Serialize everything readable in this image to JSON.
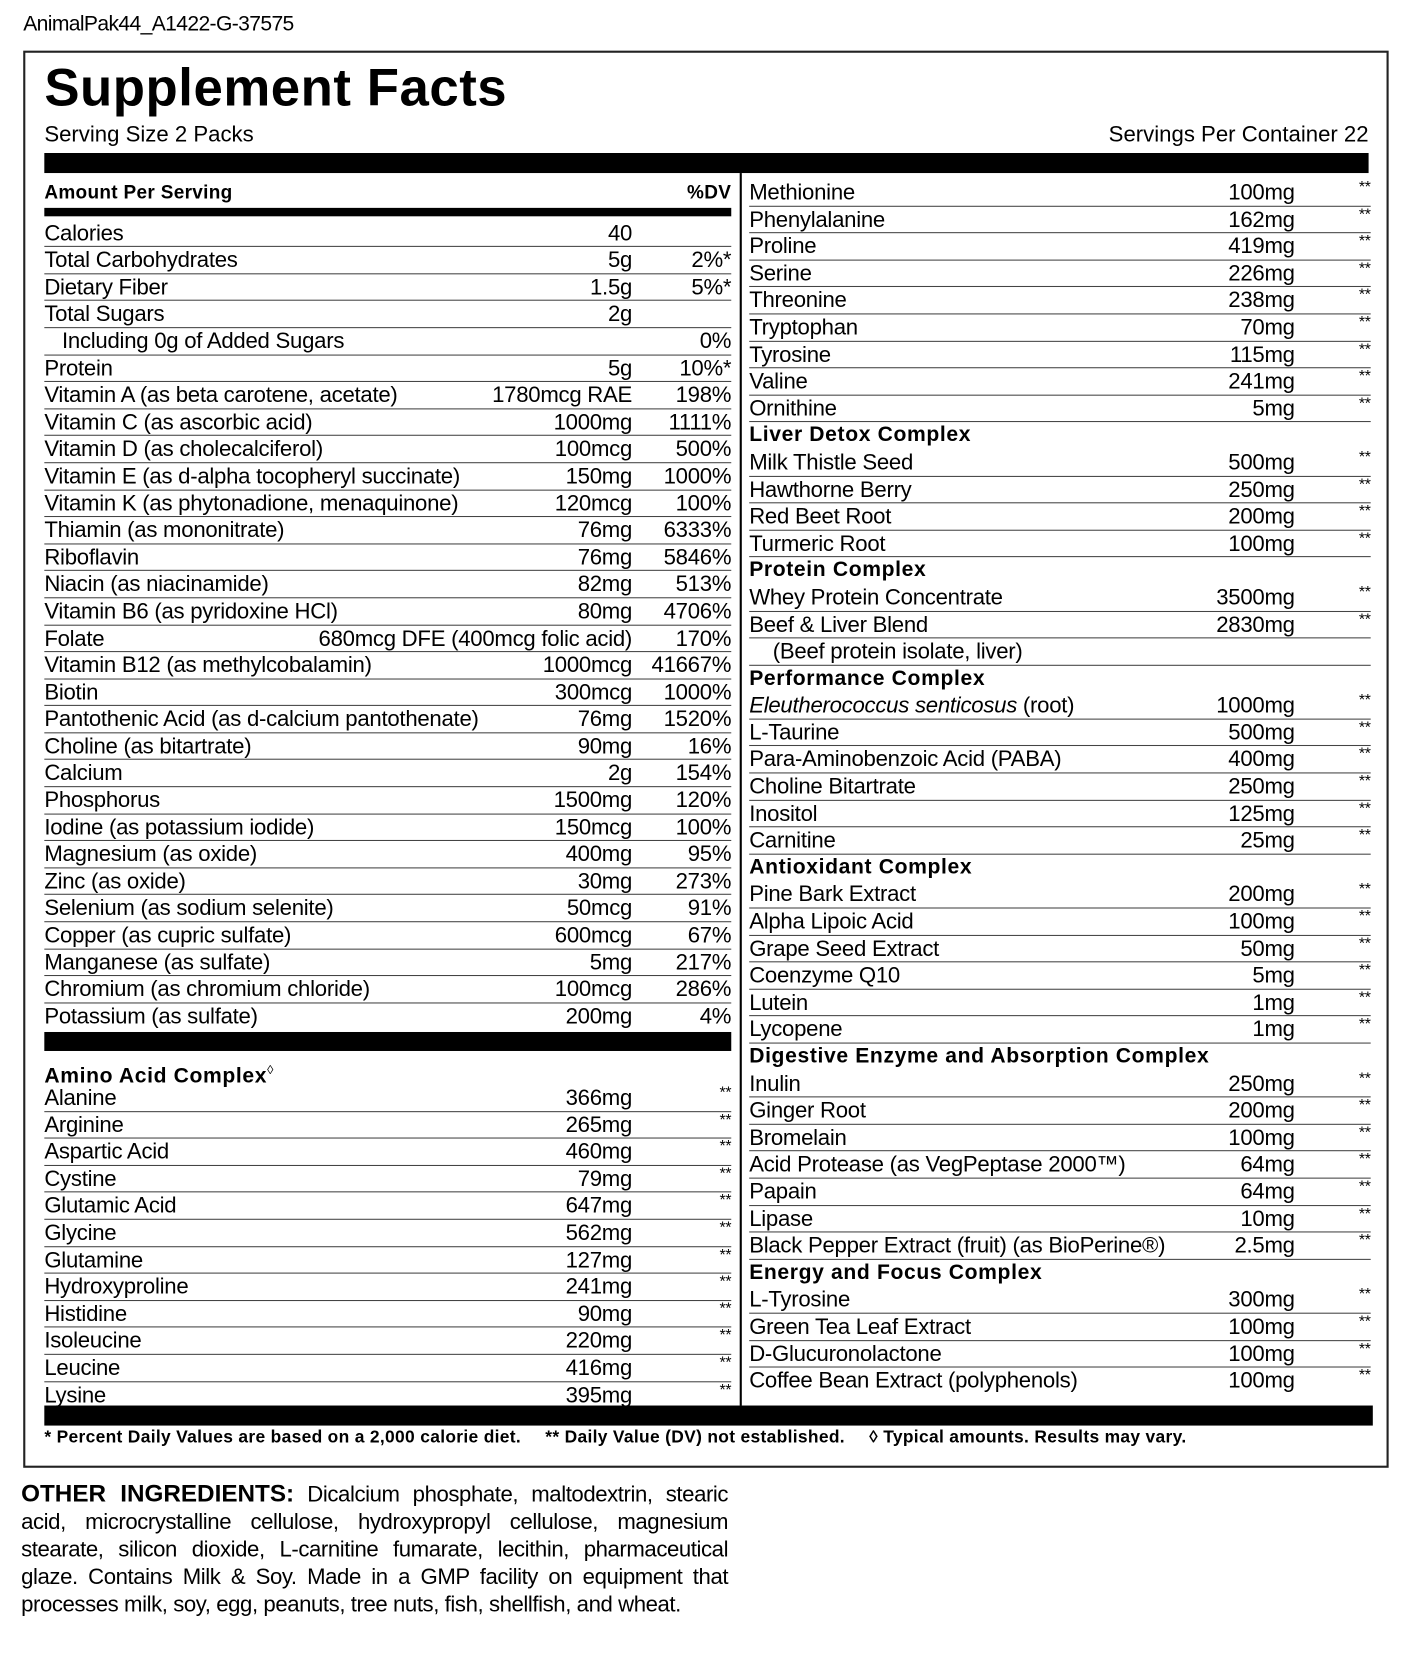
{
  "label_code": "AnimalPak44_A1422-G-37575",
  "title": "Supplement Facts",
  "serving_size": "Serving Size 2 Packs",
  "servings_per_container": "Servings Per Container 22",
  "amount_per_serving": "Amount Per Serving",
  "dv_header": "%DV",
  "left_rows": [
    [
      "Calories",
      "40",
      ""
    ],
    [
      "Total Carbohydrates",
      "5g",
      "2%*"
    ],
    [
      "Dietary Fiber",
      "1.5g",
      "5%*"
    ],
    [
      "Total Sugars",
      "2g",
      ""
    ],
    [
      "   Including 0g of Added Sugars",
      "",
      "0%"
    ],
    [
      "Protein",
      "5g",
      "10%*"
    ],
    [
      "Vitamin A (as beta carotene, acetate)",
      "1780mcg RAE",
      "198%"
    ],
    [
      "Vitamin C (as ascorbic acid)",
      "1000mg",
      "1111%"
    ],
    [
      "Vitamin D (as cholecalciferol)",
      "100mcg",
      "500%"
    ],
    [
      "Vitamin E (as d-alpha tocopheryl succinate)",
      "150mg",
      "1000%"
    ],
    [
      "Vitamin K (as phytonadione, menaquinone)",
      "120mcg",
      "100%"
    ],
    [
      "Thiamin (as mononitrate)",
      "76mg",
      "6333%"
    ],
    [
      "Riboflavin",
      "76mg",
      "5846%"
    ],
    [
      "Niacin (as niacinamide)",
      "82mg",
      "513%"
    ],
    [
      "Vitamin B6 (as pyridoxine HCl)",
      "80mg",
      "4706%"
    ],
    [
      "Folate",
      "680mcg DFE (400mcg folic acid)",
      "170%"
    ],
    [
      "Vitamin B12 (as methylcobalamin)",
      "1000mcg",
      "41667%"
    ],
    [
      "Biotin",
      "300mcg",
      "1000%"
    ],
    [
      "Pantothenic Acid (as d-calcium pantothenate)",
      "76mg",
      "1520%"
    ],
    [
      "Choline (as bitartrate)",
      "90mg",
      "16%"
    ],
    [
      "Calcium",
      "2g",
      "154%"
    ],
    [
      "Phosphorus",
      "1500mg",
      "120%"
    ],
    [
      "Iodine (as potassium iodide)",
      "150mcg",
      "100%"
    ],
    [
      "Magnesium (as oxide)",
      "400mg",
      "95%"
    ],
    [
      "Zinc (as oxide)",
      "30mg",
      "273%"
    ],
    [
      "Selenium (as sodium selenite)",
      "50mcg",
      "91%"
    ],
    [
      "Copper (as cupric sulfate)",
      "600mcg",
      "67%"
    ],
    [
      "Manganese (as sulfate)",
      "5mg",
      "217%"
    ],
    [
      "Chromium (as chromium chloride)",
      "100mcg",
      "286%"
    ],
    [
      "Potassium (as sulfate)",
      "200mg",
      "4%"
    ]
  ],
  "amino": {
    "title": "Amino Acid Complex",
    "mark": "◊",
    "rows": [
      [
        "Alanine",
        "366mg",
        "**"
      ],
      [
        "Arginine",
        "265mg",
        "**"
      ],
      [
        "Aspartic Acid",
        "460mg",
        "**"
      ],
      [
        "Cystine",
        "79mg",
        "**"
      ],
      [
        "Glutamic Acid",
        "647mg",
        "**"
      ],
      [
        "Glycine",
        "562mg",
        "**"
      ],
      [
        "Glutamine",
        "127mg",
        "**"
      ],
      [
        "Hydroxyproline",
        "241mg",
        "**"
      ],
      [
        "Histidine",
        "90mg",
        "**"
      ],
      [
        "Isoleucine",
        "220mg",
        "**"
      ],
      [
        "Leucine",
        "416mg",
        "**"
      ],
      [
        "Lysine",
        "395mg",
        "**"
      ]
    ]
  },
  "right_sections": [
    {
      "title": "",
      "rows": [
        [
          "Methionine",
          "100mg",
          "**"
        ],
        [
          "Phenylalanine",
          "162mg",
          "**"
        ],
        [
          "Proline",
          "419mg",
          "**"
        ],
        [
          "Serine",
          "226mg",
          "**"
        ],
        [
          "Threonine",
          "238mg",
          "**"
        ],
        [
          "Tryptophan",
          "70mg",
          "**"
        ],
        [
          "Tyrosine",
          "115mg",
          "**"
        ],
        [
          "Valine",
          "241mg",
          "**"
        ],
        [
          "Ornithine",
          "5mg",
          "**"
        ]
      ]
    },
    {
      "title": "Liver Detox Complex",
      "rows": [
        [
          "Milk Thistle Seed",
          "500mg",
          "**"
        ],
        [
          "Hawthorne Berry",
          "250mg",
          "**"
        ],
        [
          "Red Beet Root",
          "200mg",
          "**"
        ],
        [
          "Turmeric Root",
          "100mg",
          "**"
        ]
      ]
    },
    {
      "title": "Protein Complex",
      "rows": [
        [
          "Whey Protein Concentrate",
          "3500mg",
          "**"
        ],
        [
          "Beef & Liver Blend",
          "2830mg",
          "**"
        ],
        [
          "    (Beef protein isolate, liver)",
          "",
          ""
        ]
      ]
    },
    {
      "title": "Performance Complex",
      "rows": [
        [
          "Eleutherococcus senticosus|| (root)",
          "1000mg",
          "**"
        ],
        [
          "L-Taurine",
          "500mg",
          "**"
        ],
        [
          "Para-Aminobenzoic Acid (PABA)",
          "400mg",
          "**"
        ],
        [
          "Choline Bitartrate",
          "250mg",
          "**"
        ],
        [
          "Inositol",
          "125mg",
          "**"
        ],
        [
          "Carnitine",
          "25mg",
          "**"
        ]
      ]
    },
    {
      "title": "Antioxidant Complex",
      "rows": [
        [
          "Pine Bark Extract",
          "200mg",
          "**"
        ],
        [
          "Alpha Lipoic Acid",
          "100mg",
          "**"
        ],
        [
          "Grape Seed Extract",
          "50mg",
          "**"
        ],
        [
          "Coenzyme Q10",
          "5mg",
          "**"
        ],
        [
          "Lutein",
          "1mg",
          "**"
        ],
        [
          "Lycopene",
          "1mg",
          "**"
        ]
      ]
    },
    {
      "title": "Digestive Enzyme and Absorption Complex",
      "rows": [
        [
          "Inulin",
          "250mg",
          "**"
        ],
        [
          "Ginger Root",
          "200mg",
          "**"
        ],
        [
          "Bromelain",
          "100mg",
          "**"
        ],
        [
          "Acid Protease (as VegPeptase 2000™)",
          "64mg",
          "**"
        ],
        [
          "Papain",
          "64mg",
          "**"
        ],
        [
          "Lipase",
          "10mg",
          "**"
        ],
        [
          "Black Pepper Extract (fruit) (as BioPerine®)",
          "2.5mg",
          "**"
        ]
      ]
    },
    {
      "title": "Energy and Focus Complex",
      "rows": [
        [
          "L-Tyrosine",
          "300mg",
          "**"
        ],
        [
          "Green Tea Leaf Extract",
          "100mg",
          "**"
        ],
        [
          "D-Glucuronolactone",
          "100mg",
          "**"
        ],
        [
          "Coffee Bean Extract (polyphenols)",
          "100mg",
          "**"
        ]
      ]
    }
  ],
  "footnotes": [
    "* Percent Daily Values are based on a 2,000 calorie diet.",
    "** Daily Value (DV) not established.",
    "◊ Typical amounts. Results may vary."
  ],
  "other_ingredients": {
    "label": "OTHER INGREDIENTS:",
    "text": " Dicalcium phosphate, maltodextrin, stearic acid, microcrystalline cellulose, hydroxypropyl cellulose, magnesium stearate, silicon dioxide, L-carnitine fumarate, lecithin, pharmaceutical glaze. Contains Milk & Soy. Made in a GMP facility on equipment that processes milk, soy, egg, peanuts, tree nuts, fish, shellfish, and wheat."
  }
}
